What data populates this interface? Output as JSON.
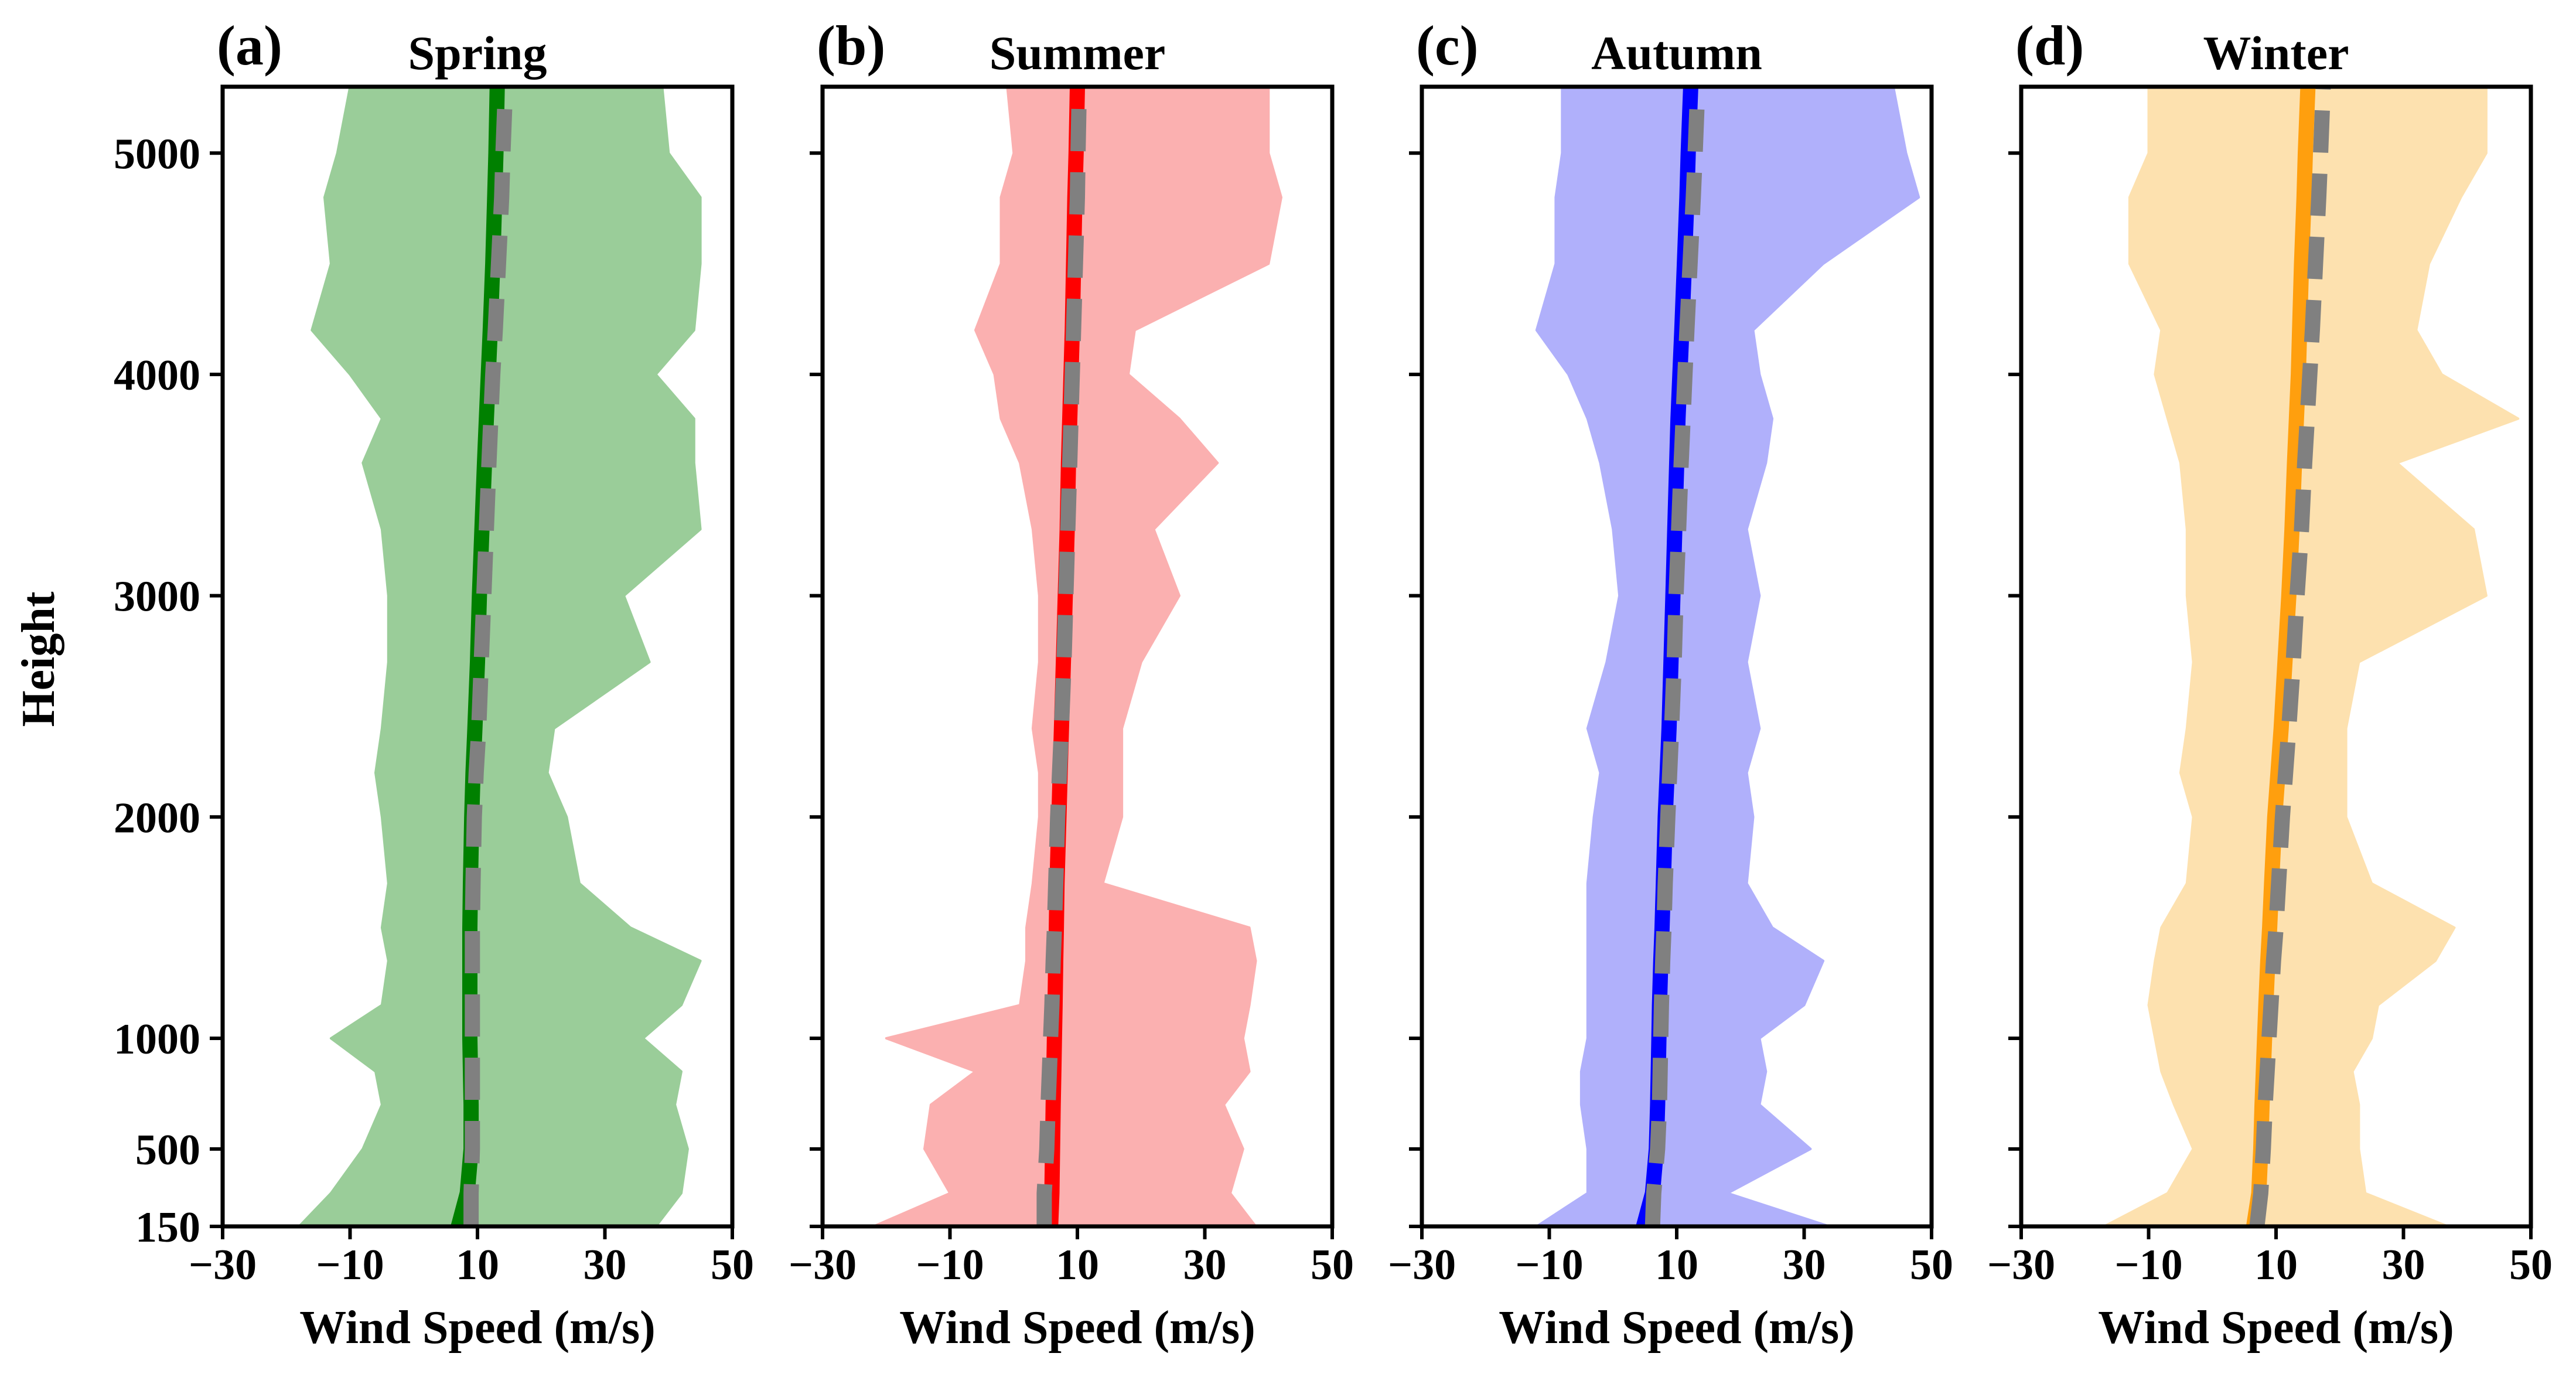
{
  "chart_data": {
    "type": "area",
    "ylabel": "Height",
    "xlabel": "Wind Speed (m/s)",
    "xlim": [
      -30,
      50
    ],
    "xticks": [
      -30,
      -10,
      10,
      30,
      50
    ],
    "xtick_labels": [
      "−30",
      "−10",
      "10",
      "30",
      "50"
    ],
    "ylim": [
      150,
      5300
    ],
    "yticks": [
      150,
      500,
      1000,
      2000,
      3000,
      4000,
      5000
    ],
    "ytick_labels": [
      "150",
      "500",
      "1000",
      "2000",
      "3000",
      "4000",
      "5000"
    ],
    "heights": [
      150,
      300,
      500,
      700,
      850,
      1000,
      1150,
      1350,
      1500,
      1700,
      2000,
      2200,
      2400,
      2700,
      3000,
      3300,
      3600,
      3800,
      4000,
      4200,
      4500,
      4800,
      5000,
      5300
    ],
    "panels": [
      {
        "label": "(a)",
        "title": "Spring",
        "color": "#008000",
        "fill": "#9acd99",
        "mean": [
          7.0,
          8.4,
          9.0,
          9.0,
          8.9,
          8.8,
          8.8,
          8.8,
          8.8,
          8.9,
          9.1,
          9.3,
          9.6,
          10.0,
          10.3,
          10.7,
          11.1,
          11.4,
          11.7,
          12.0,
          12.4,
          12.7,
          12.9,
          13.1
        ],
        "fit": [
          9.0,
          9.0,
          9.2,
          9.2,
          9.2,
          9.2,
          9.2,
          9.2,
          9.2,
          9.3,
          9.5,
          9.8,
          10.2,
          10.6,
          11.0,
          11.4,
          11.8,
          12.1,
          12.4,
          12.8,
          13.3,
          13.8,
          14.0,
          14.4
        ],
        "lower": [
          -18,
          -13,
          -8,
          -5,
          -6,
          -13,
          -5,
          -4,
          -5,
          -4,
          -5,
          -6,
          -5,
          -4,
          -4,
          -5,
          -8,
          -5,
          -10,
          -16,
          -13,
          -14,
          -12,
          -10
        ],
        "upper": [
          38,
          42,
          43,
          41,
          42,
          36,
          42,
          45,
          34,
          26,
          24,
          21,
          22,
          37,
          33,
          45,
          44,
          44,
          38,
          44,
          45,
          45,
          40,
          39
        ]
      },
      {
        "label": "(b)",
        "title": "Summer",
        "color": "#ff0000",
        "fill": "#fbb0b0",
        "mean": [
          5.8,
          6.0,
          6.1,
          6.2,
          6.3,
          6.4,
          6.5,
          6.6,
          6.7,
          6.8,
          7.1,
          7.3,
          7.5,
          7.8,
          8.1,
          8.4,
          8.6,
          8.8,
          9.0,
          9.2,
          9.4,
          9.6,
          9.8,
          10.0
        ],
        "fit": [
          4.8,
          4.8,
          5.2,
          5.4,
          5.6,
          5.8,
          6.0,
          6.2,
          6.4,
          6.6,
          6.9,
          7.2,
          7.5,
          7.9,
          8.2,
          8.5,
          8.8,
          9.0,
          9.2,
          9.4,
          9.7,
          10.0,
          10.1,
          10.3
        ],
        "lower": [
          -22,
          -10,
          -14,
          -13,
          -6,
          -20,
          1,
          2,
          2,
          3,
          4,
          4,
          3,
          4,
          4,
          3,
          1,
          -2,
          -3,
          -6,
          -2,
          -2,
          0,
          -1
        ],
        "upper": [
          38,
          34,
          36,
          33,
          37,
          36,
          37,
          38,
          37,
          14,
          17,
          17,
          17,
          20,
          26,
          22,
          32,
          26,
          18,
          19,
          40,
          42,
          40,
          40
        ]
      },
      {
        "label": "(c)",
        "title": "Autumn",
        "color": "#0000ff",
        "fill": "#b0b0fb",
        "mean": [
          4.8,
          6.2,
          6.8,
          7.0,
          7.1,
          7.2,
          7.3,
          7.5,
          7.7,
          7.9,
          8.2,
          8.5,
          8.8,
          9.1,
          9.4,
          9.7,
          10.0,
          10.2,
          10.5,
          10.8,
          11.2,
          11.6,
          11.8,
          12.2
        ],
        "fit": [
          6.2,
          6.4,
          7.0,
          7.3,
          7.4,
          7.5,
          7.6,
          7.8,
          8.0,
          8.2,
          8.6,
          8.9,
          9.2,
          9.6,
          9.9,
          10.3,
          10.7,
          11.0,
          11.3,
          11.6,
          12.1,
          12.6,
          12.9,
          13.3
        ],
        "lower": [
          -12,
          -4,
          -4,
          -5,
          -5,
          -4,
          -4,
          -4,
          -4,
          -4,
          -3,
          -2,
          -4,
          -1,
          1,
          0,
          -2,
          -4,
          -7,
          -12,
          -9,
          -9,
          -8,
          -8
        ],
        "upper": [
          34,
          18,
          31,
          23,
          24,
          23,
          30,
          33,
          25,
          21,
          22,
          21,
          23,
          21,
          23,
          21,
          24,
          25,
          23,
          22,
          33,
          48,
          46,
          44
        ]
      },
      {
        "label": "(d)",
        "title": "Winter",
        "color": "#ff9f0e",
        "fill": "#fde1af",
        "mean": [
          6.5,
          7.3,
          7.6,
          7.8,
          8.0,
          8.2,
          8.4,
          8.7,
          9.0,
          9.3,
          9.8,
          10.3,
          10.8,
          11.4,
          12.0,
          12.5,
          12.9,
          13.2,
          13.5,
          13.7,
          14.0,
          14.4,
          14.6,
          15.0
        ],
        "fit": [
          7.0,
          7.6,
          8.0,
          8.3,
          8.6,
          8.9,
          9.2,
          9.6,
          10.0,
          10.4,
          11.0,
          11.5,
          12.0,
          12.7,
          13.3,
          14.0,
          14.5,
          14.9,
          15.3,
          15.7,
          16.2,
          16.7,
          17.0,
          17.4
        ],
        "lower": [
          -17,
          -7,
          -3,
          -6,
          -8,
          -9,
          -10,
          -9,
          -8,
          -4,
          -3,
          -5,
          -4,
          -3,
          -4,
          -4,
          -5,
          -7,
          -9,
          -8,
          -13,
          -13,
          -10,
          -10
        ],
        "upper": [
          37,
          24,
          23,
          23,
          22,
          25,
          26,
          35,
          38,
          25,
          21,
          21,
          21,
          23,
          43,
          41,
          29,
          48,
          36,
          32,
          34,
          39,
          43,
          43
        ]
      }
    ]
  }
}
